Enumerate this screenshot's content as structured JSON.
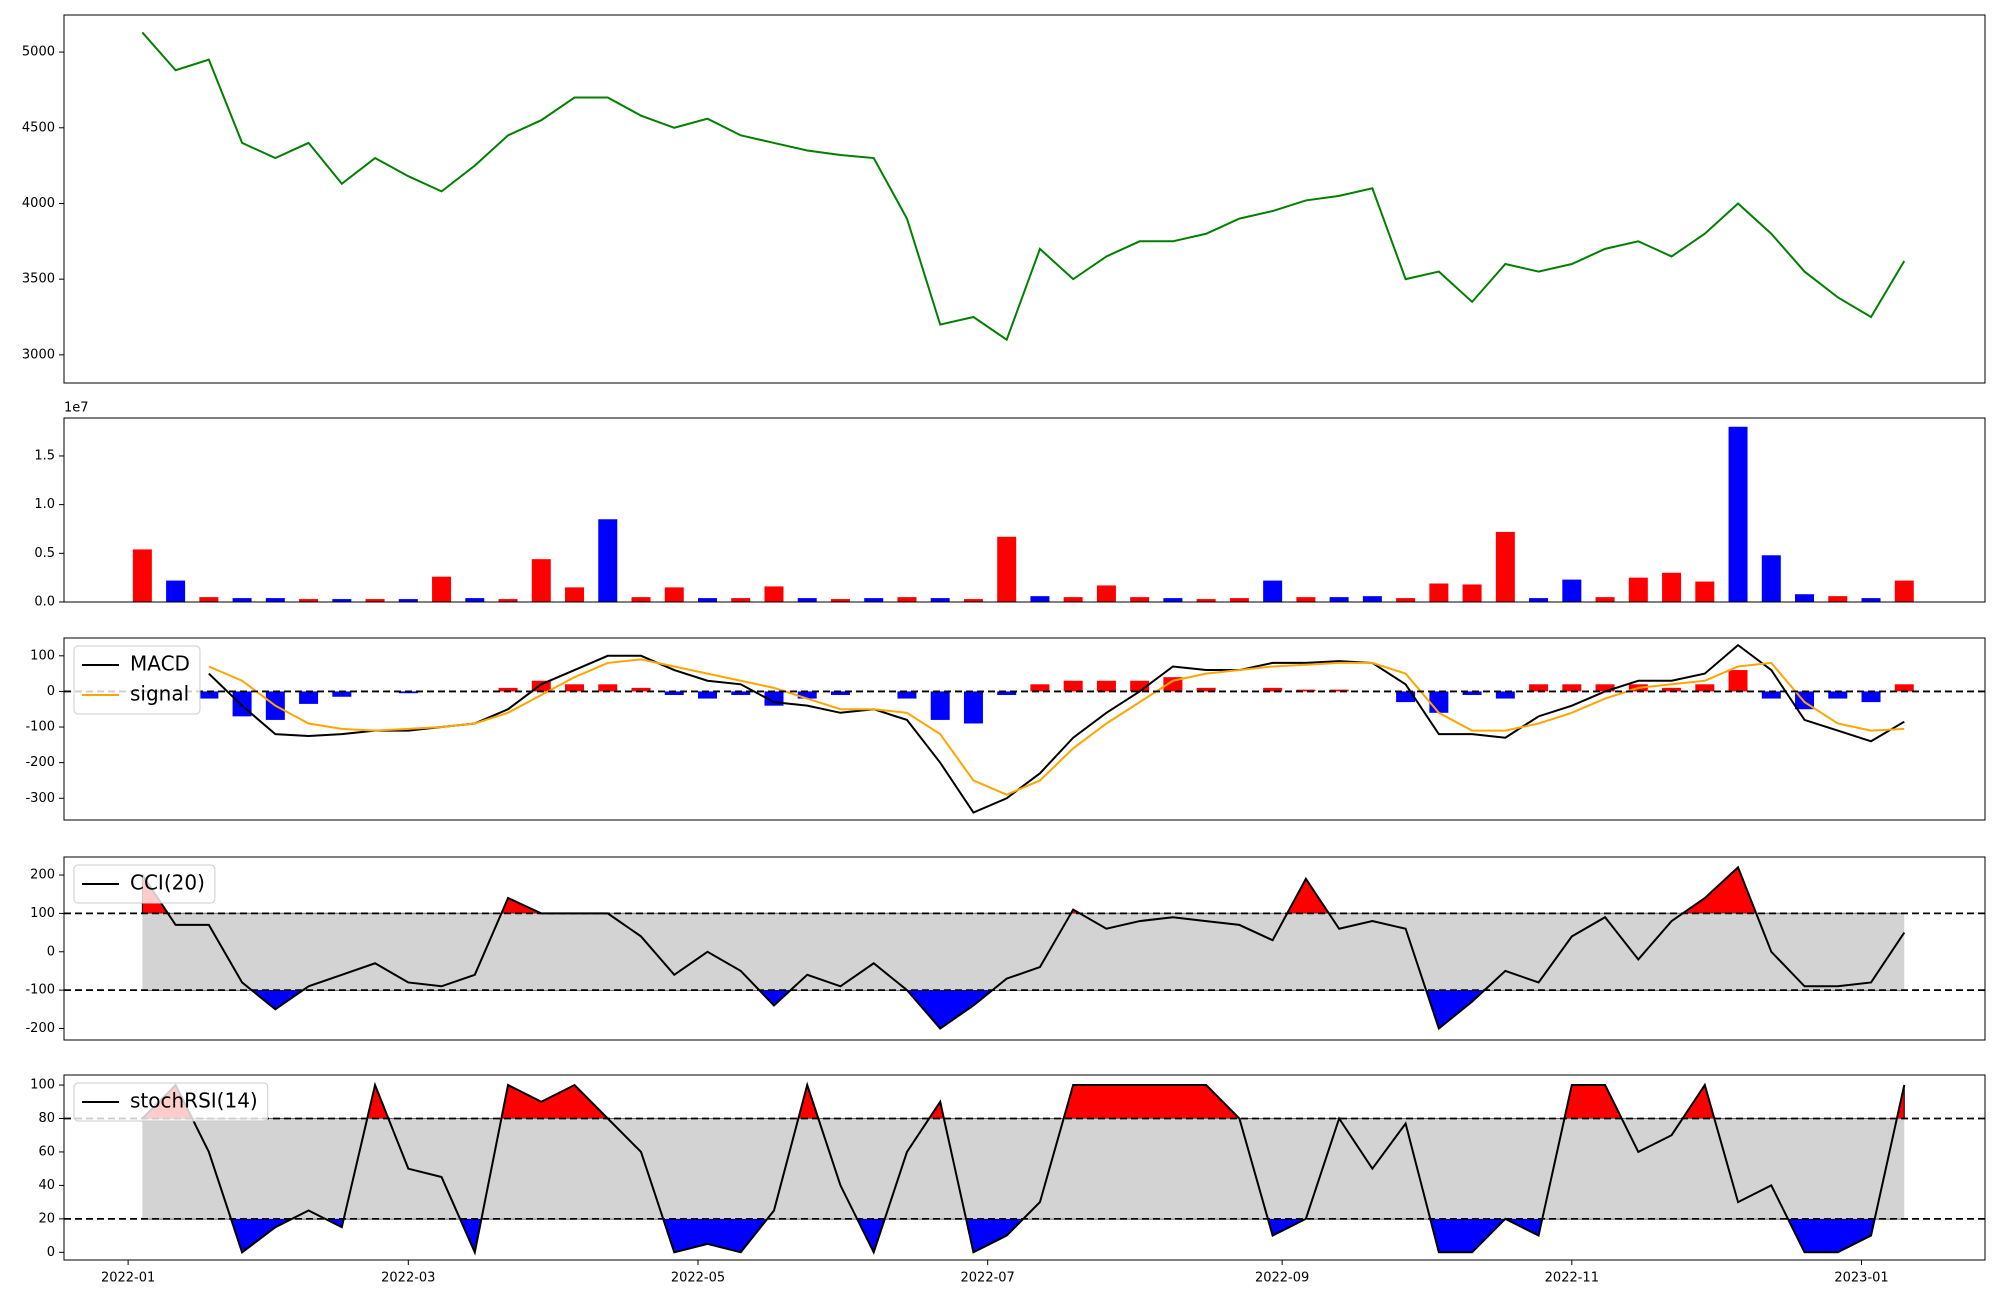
{
  "chart_data": [
    {
      "type": "line",
      "x": [
        3,
        10,
        17,
        24,
        31,
        38,
        45,
        52,
        59,
        66,
        73,
        80,
        87,
        94,
        101,
        108,
        115,
        122,
        129,
        136,
        143,
        150,
        157,
        164,
        171,
        178,
        185,
        192,
        199,
        206,
        213,
        220,
        227,
        234,
        241,
        248,
        255,
        262,
        269,
        276,
        283,
        290,
        297,
        304,
        311,
        318,
        325,
        332,
        339,
        346,
        353,
        360,
        367,
        374
      ],
      "xlim": [
        -13.5,
        391
      ],
      "ylim": [
        2814,
        5245
      ],
      "yticks": [
        3000,
        3500,
        4000,
        4500,
        5000
      ],
      "series": [
        {
          "color": "#008000",
          "values": [
            5130,
            4880,
            4950,
            4400,
            4300,
            4400,
            4130,
            4300,
            4180,
            4080,
            4250,
            4450,
            4550,
            4700,
            4700,
            4580,
            4500,
            4560,
            4450,
            4400,
            4350,
            4320,
            4300,
            3900,
            3200,
            3250,
            3100,
            3700,
            3500,
            3650,
            3750,
            3750,
            3800,
            3900,
            3950,
            4020,
            4050,
            4100,
            3500,
            3550,
            3350,
            3600,
            3550,
            3600,
            3700,
            3750,
            3650,
            3800,
            4000,
            3800,
            3550,
            3380,
            3250,
            3620
          ]
        }
      ]
    },
    {
      "type": "bar",
      "x": [
        3,
        10,
        17,
        24,
        31,
        38,
        45,
        52,
        59,
        66,
        73,
        80,
        87,
        94,
        101,
        108,
        115,
        122,
        129,
        136,
        143,
        150,
        157,
        164,
        171,
        178,
        185,
        192,
        199,
        206,
        213,
        220,
        227,
        234,
        241,
        248,
        255,
        262,
        269,
        276,
        283,
        290,
        297,
        304,
        311,
        318,
        325,
        332,
        339,
        346,
        353,
        360,
        367,
        374
      ],
      "xlim": [
        -13.5,
        391
      ],
      "ylim": [
        0,
        1.89
      ],
      "yticks": [
        {
          "value": 0,
          "label": "0.0"
        },
        0.5,
        {
          "value": 1,
          "label": "1.0"
        },
        1.5
      ],
      "offset_label": "1e7",
      "values": [
        0.54,
        0.22,
        0.05,
        0.04,
        0.04,
        0.03,
        0.03,
        0.03,
        0.03,
        0.26,
        0.04,
        0.03,
        0.44,
        0.15,
        0.85,
        0.05,
        0.15,
        0.04,
        0.04,
        0.16,
        0.04,
        0.03,
        0.04,
        0.05,
        0.04,
        0.03,
        0.67,
        0.06,
        0.05,
        0.17,
        0.05,
        0.04,
        0.03,
        0.04,
        0.22,
        0.05,
        0.05,
        0.06,
        0.04,
        0.19,
        0.18,
        0.72,
        0.04,
        0.23,
        0.05,
        0.25,
        0.3,
        0.21,
        1.8,
        0.48,
        0.08,
        0.06,
        0.04,
        0.22
      ],
      "colors": [
        "#ff0000",
        "#0000ff",
        "#ff0000",
        "#0000ff",
        "#0000ff",
        "#ff0000",
        "#0000ff",
        "#ff0000",
        "#0000ff",
        "#ff0000",
        "#0000ff",
        "#ff0000",
        "#ff0000",
        "#ff0000",
        "#0000ff",
        "#ff0000",
        "#ff0000",
        "#0000ff",
        "#ff0000",
        "#ff0000",
        "#0000ff",
        "#ff0000",
        "#0000ff",
        "#ff0000",
        "#0000ff",
        "#ff0000",
        "#ff0000",
        "#0000ff",
        "#ff0000",
        "#ff0000",
        "#ff0000",
        "#0000ff",
        "#ff0000",
        "#ff0000",
        "#0000ff",
        "#ff0000",
        "#0000ff",
        "#0000ff",
        "#ff0000",
        "#ff0000",
        "#ff0000",
        "#ff0000",
        "#0000ff",
        "#0000ff",
        "#ff0000",
        "#ff0000",
        "#ff0000",
        "#ff0000",
        "#0000ff",
        "#0000ff",
        "#0000ff",
        "#ff0000",
        "#0000ff",
        "#ff0000"
      ]
    },
    {
      "type": "line",
      "x": [
        3,
        10,
        17,
        24,
        31,
        38,
        45,
        52,
        59,
        66,
        73,
        80,
        87,
        94,
        101,
        108,
        115,
        122,
        129,
        136,
        143,
        150,
        157,
        164,
        171,
        178,
        185,
        192,
        199,
        206,
        213,
        220,
        227,
        234,
        241,
        248,
        255,
        262,
        269,
        276,
        283,
        290,
        297,
        304,
        311,
        318,
        325,
        332,
        339,
        346,
        353,
        360,
        367,
        374
      ],
      "xlim": [
        -13.5,
        391
      ],
      "ylim": [
        -361,
        150
      ],
      "yticks": [
        -300,
        -200,
        -100,
        0,
        100
      ],
      "hlines": [
        0
      ],
      "legend": "upper left",
      "histogram": {
        "positive_color": "#ff0000",
        "negative_color": "#0000ff",
        "values": [
          null,
          null,
          -20,
          -70,
          -80,
          -35,
          -15,
          0,
          -5,
          0,
          0,
          10,
          30,
          20,
          20,
          10,
          -10,
          -20,
          -10,
          -40,
          -20,
          -10,
          0,
          -20,
          -80,
          -90,
          -10,
          20,
          30,
          30,
          30,
          40,
          10,
          0,
          10,
          5,
          5,
          0,
          -30,
          -60,
          -10,
          -20,
          20,
          20,
          20,
          20,
          10,
          20,
          60,
          -20,
          -50,
          -20,
          -30,
          20
        ]
      },
      "series": [
        {
          "name": "MACD",
          "color": "#000000",
          "values": [
            null,
            null,
            50,
            -40,
            -120,
            -125,
            -120,
            -110,
            -110,
            -100,
            -90,
            -50,
            20,
            60,
            100,
            100,
            60,
            30,
            20,
            -30,
            -40,
            -60,
            -50,
            -80,
            -200,
            -340,
            -300,
            -230,
            -130,
            -60,
            0,
            70,
            60,
            60,
            80,
            80,
            85,
            80,
            20,
            -120,
            -120,
            -130,
            -70,
            -40,
            0,
            30,
            30,
            50,
            130,
            60,
            -80,
            -110,
            -140,
            -85
          ]
        },
        {
          "name": "signal",
          "color": "#ffa500",
          "values": [
            null,
            null,
            70,
            30,
            -40,
            -90,
            -105,
            -110,
            -105,
            -100,
            -90,
            -60,
            -10,
            40,
            80,
            90,
            70,
            50,
            30,
            10,
            -20,
            -50,
            -50,
            -60,
            -120,
            -250,
            -290,
            -250,
            -160,
            -90,
            -30,
            30,
            50,
            60,
            70,
            75,
            80,
            80,
            50,
            -60,
            -110,
            -110,
            -90,
            -60,
            -20,
            10,
            20,
            30,
            70,
            80,
            -30,
            -90,
            -110,
            -105
          ]
        }
      ]
    },
    {
      "type": "line",
      "x": [
        3,
        10,
        17,
        24,
        31,
        38,
        45,
        52,
        59,
        66,
        73,
        80,
        87,
        94,
        101,
        108,
        115,
        122,
        129,
        136,
        143,
        150,
        157,
        164,
        171,
        178,
        185,
        192,
        199,
        206,
        213,
        220,
        227,
        234,
        241,
        248,
        255,
        262,
        269,
        276,
        283,
        290,
        297,
        304,
        311,
        318,
        325,
        332,
        339,
        346,
        353,
        360,
        367,
        374
      ],
      "xlim": [
        -13.5,
        391
      ],
      "ylim": [
        -230,
        247
      ],
      "yticks": [
        -200,
        -100,
        0,
        100,
        200
      ],
      "hlines": [
        100,
        -100
      ],
      "band_color": "#d3d3d3",
      "fill_above": "#ff0000",
      "fill_below": "#0000ff",
      "legend": "upper left",
      "series": [
        {
          "name": "CCI(20)",
          "color": "#000000",
          "values": [
            200,
            70,
            70,
            -80,
            -150,
            -90,
            -60,
            -30,
            -80,
            -90,
            -60,
            140,
            100,
            100,
            100,
            40,
            -60,
            0,
            -50,
            -140,
            -60,
            -90,
            -30,
            -100,
            -200,
            -140,
            -70,
            -40,
            110,
            60,
            80,
            90,
            80,
            70,
            30,
            190,
            60,
            80,
            60,
            -200,
            -130,
            -50,
            -80,
            40,
            90,
            -20,
            80,
            140,
            220,
            0,
            -90,
            -90,
            -80,
            50
          ]
        }
      ]
    },
    {
      "type": "line",
      "x": [
        3,
        10,
        17,
        24,
        31,
        38,
        45,
        52,
        59,
        66,
        73,
        80,
        87,
        94,
        101,
        108,
        115,
        122,
        129,
        136,
        143,
        150,
        157,
        164,
        171,
        178,
        185,
        192,
        199,
        206,
        213,
        220,
        227,
        234,
        241,
        248,
        255,
        262,
        269,
        276,
        283,
        290,
        297,
        304,
        311,
        318,
        325,
        332,
        339,
        346,
        353,
        360,
        367,
        374
      ],
      "xlim": [
        -13.5,
        391
      ],
      "xticks": [
        {
          "value": 0,
          "label": "2022-01"
        },
        {
          "value": 59,
          "label": "2022-03"
        },
        {
          "value": 120,
          "label": "2022-05"
        },
        {
          "value": 181,
          "label": "2022-07"
        },
        {
          "value": 243,
          "label": "2022-09"
        },
        {
          "value": 304,
          "label": "2022-11"
        },
        {
          "value": 365,
          "label": "2023-01"
        }
      ],
      "ylim": [
        -4.6,
        106
      ],
      "yticks": [
        0,
        20,
        40,
        60,
        80,
        100
      ],
      "hlines": [
        80,
        20
      ],
      "band_color": "#d3d3d3",
      "fill_above": "#ff0000",
      "fill_below": "#0000ff",
      "legend": "upper left",
      "series": [
        {
          "name": "stochRSI(14)",
          "color": "#000000",
          "values": [
            80,
            100,
            60,
            0,
            15,
            25,
            15,
            100,
            50,
            45,
            0,
            100,
            90,
            100,
            80,
            60,
            0,
            5,
            0,
            25,
            100,
            40,
            0,
            60,
            90,
            0,
            10,
            30,
            100,
            100,
            100,
            100,
            100,
            80,
            10,
            20,
            80,
            50,
            77,
            0,
            0,
            20,
            10,
            100,
            100,
            60,
            70,
            100,
            30,
            40,
            0,
            0,
            10,
            100
          ]
        }
      ]
    }
  ]
}
